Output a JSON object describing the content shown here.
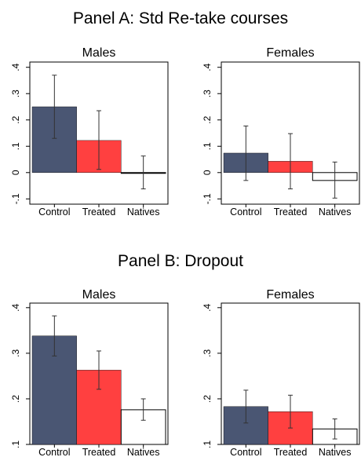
{
  "panels": [
    {
      "title": "Panel A: Std Re-take courses",
      "charts": [
        {
          "type": "bar",
          "title": "Males",
          "categories": [
            "Control",
            "Treated",
            "Natives"
          ],
          "values": [
            0.25,
            0.122,
            0.0
          ],
          "ci_low": [
            0.13,
            0.012,
            -0.062
          ],
          "ci_high": [
            0.37,
            0.235,
            0.063
          ],
          "colors": [
            "#4a5673",
            "#ff4040",
            "#ffffff"
          ],
          "ylim": [
            -0.12,
            0.42
          ],
          "yticks": [
            -0.1,
            0,
            0.1,
            0.2,
            0.3,
            0.4
          ],
          "ytick_labels": [
            "-.1",
            "0",
            ".1",
            ".2",
            ".3",
            ".4"
          ]
        },
        {
          "type": "bar",
          "title": "Females",
          "categories": [
            "Control",
            "Treated",
            "Natives"
          ],
          "values": [
            0.074,
            0.043,
            -0.03
          ],
          "ci_low": [
            -0.03,
            -0.062,
            -0.097
          ],
          "ci_high": [
            0.177,
            0.148,
            0.04
          ],
          "colors": [
            "#4a5673",
            "#ff4040",
            "#ffffff"
          ],
          "ylim": [
            -0.12,
            0.42
          ],
          "yticks": [
            -0.1,
            0,
            0.1,
            0.2,
            0.3,
            0.4
          ],
          "ytick_labels": [
            "-.1",
            "0",
            ".1",
            ".2",
            ".3",
            ".4"
          ]
        }
      ]
    },
    {
      "title": "Panel B: Dropout",
      "charts": [
        {
          "type": "bar",
          "title": "Males",
          "categories": [
            "Control",
            "Treated",
            "Natives"
          ],
          "values": [
            0.338,
            0.263,
            0.176
          ],
          "ci_low": [
            0.294,
            0.221,
            0.153
          ],
          "ci_high": [
            0.382,
            0.305,
            0.2
          ],
          "colors": [
            "#4a5673",
            "#ff4040",
            "#ffffff"
          ],
          "ylim": [
            0.1,
            0.41
          ],
          "yticks": [
            0.1,
            0.2,
            0.3,
            0.4
          ],
          "ytick_labels": [
            ".1",
            ".2",
            ".3",
            ".4"
          ]
        },
        {
          "type": "bar",
          "title": "Females",
          "categories": [
            "Control",
            "Treated",
            "Natives"
          ],
          "values": [
            0.183,
            0.172,
            0.134
          ],
          "ci_low": [
            0.147,
            0.136,
            0.112
          ],
          "ci_high": [
            0.219,
            0.208,
            0.156
          ],
          "colors": [
            "#4a5673",
            "#ff4040",
            "#ffffff"
          ],
          "ylim": [
            0.1,
            0.41
          ],
          "yticks": [
            0.1,
            0.2,
            0.3,
            0.4
          ],
          "ytick_labels": [
            ".1",
            ".2",
            ".3",
            ".4"
          ]
        }
      ]
    }
  ],
  "chart_data": [
    {
      "type": "bar",
      "title": "Males",
      "categories": [
        "Control",
        "Treated",
        "Natives"
      ],
      "values": [
        0.25,
        0.122,
        0.0
      ],
      "ci_low": [
        0.13,
        0.012,
        -0.062
      ],
      "ci_high": [
        0.37,
        0.235,
        0.063
      ],
      "ylim": [
        -0.12,
        0.42
      ]
    },
    {
      "type": "bar",
      "title": "Females",
      "categories": [
        "Control",
        "Treated",
        "Natives"
      ],
      "values": [
        0.074,
        0.043,
        -0.03
      ],
      "ci_low": [
        -0.03,
        -0.062,
        -0.097
      ],
      "ci_high": [
        0.177,
        0.148,
        0.04
      ],
      "ylim": [
        -0.12,
        0.42
      ]
    },
    {
      "type": "bar",
      "title": "Males",
      "categories": [
        "Control",
        "Treated",
        "Natives"
      ],
      "values": [
        0.338,
        0.263,
        0.176
      ],
      "ci_low": [
        0.294,
        0.221,
        0.153
      ],
      "ci_high": [
        0.382,
        0.305,
        0.2
      ],
      "ylim": [
        0.1,
        0.41
      ]
    },
    {
      "type": "bar",
      "title": "Females",
      "categories": [
        "Control",
        "Treated",
        "Natives"
      ],
      "values": [
        0.183,
        0.172,
        0.134
      ],
      "ci_low": [
        0.147,
        0.136,
        0.112
      ],
      "ci_high": [
        0.219,
        0.208,
        0.156
      ],
      "ylim": [
        0.1,
        0.41
      ]
    }
  ]
}
